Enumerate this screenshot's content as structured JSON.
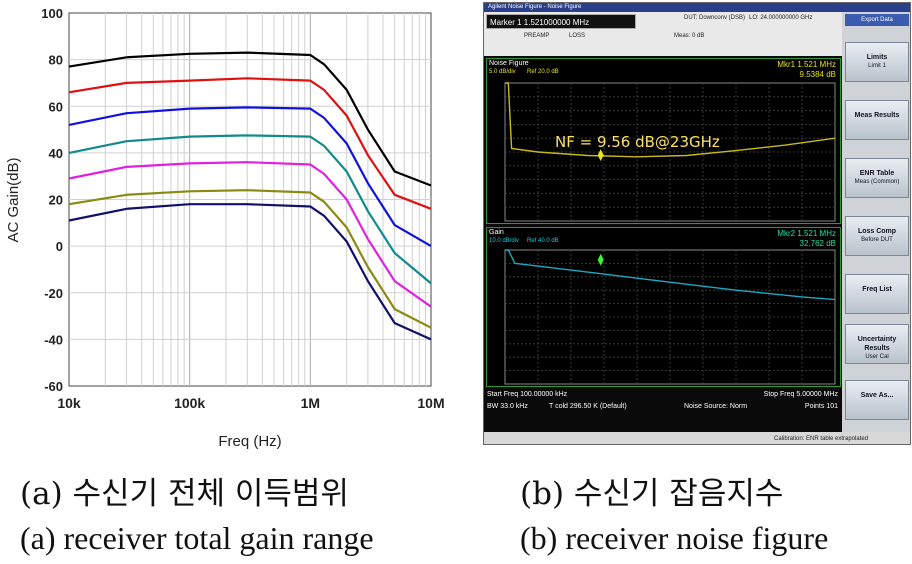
{
  "chart_data": [
    {
      "type": "line",
      "ylabel": "AC Gain(dB)",
      "xlabel": "Freq (Hz)",
      "xscale": "log",
      "xlim": [
        10000,
        10000000
      ],
      "ylim": [
        -60,
        100
      ],
      "xticks": [
        "10k",
        "100k",
        "1M",
        "10M"
      ],
      "yticks": [
        "100",
        "80",
        "60",
        "40",
        "20",
        "0",
        "-20",
        "-40",
        "-60"
      ],
      "grid": true,
      "x": [
        10000,
        30000,
        100000,
        300000,
        1000000,
        1300000,
        2000000,
        3000000,
        5000000,
        10000000
      ],
      "series": [
        {
          "color": "#000000",
          "values": [
            77,
            81,
            82.5,
            83,
            82,
            78,
            67,
            50,
            32,
            26
          ]
        },
        {
          "color": "#e01010",
          "values": [
            66,
            70,
            71,
            72,
            71,
            67,
            56,
            39,
            22,
            16
          ]
        },
        {
          "color": "#1010e0",
          "values": [
            52,
            57,
            59,
            59.5,
            59,
            55,
            44,
            27,
            9,
            0
          ]
        },
        {
          "color": "#108a8a",
          "values": [
            40,
            45,
            47,
            47.5,
            47,
            43,
            32,
            15,
            -3,
            -16
          ]
        },
        {
          "color": "#e020e0",
          "values": [
            29,
            34,
            35.5,
            36,
            35,
            31,
            20,
            3,
            -15,
            -26
          ]
        },
        {
          "color": "#8a8a10",
          "values": [
            18,
            22,
            23.5,
            24,
            23,
            19,
            8,
            -9,
            -27,
            -35
          ]
        },
        {
          "color": "#10106a",
          "values": [
            11,
            16,
            18,
            18,
            17,
            13,
            2,
            -15,
            -33,
            -40
          ]
        }
      ]
    },
    {
      "type": "line",
      "title": "Noise Figure",
      "x_start": 100000,
      "x_stop": 5000000,
      "points": 101,
      "annotation": "NF = 9.56 dB@23GHz",
      "marker_freq_mhz": 1.521,
      "marker_value": 9.5384,
      "x": [
        0,
        0.01,
        0.02,
        0.1,
        0.25,
        0.4,
        0.55,
        0.7,
        0.85,
        1.0
      ],
      "values": [
        20,
        20,
        10.5,
        10,
        9.5,
        9.3,
        9.5,
        10.2,
        11,
        12
      ],
      "ylim": [
        0,
        20
      ]
    },
    {
      "type": "line",
      "title": "Gain",
      "marker_freq_mhz": 1.521,
      "marker_value": 32.762,
      "x": [
        0,
        0.01,
        0.03,
        0.1,
        0.3,
        0.5,
        0.7,
        0.9,
        1.0
      ],
      "values": [
        40,
        40,
        30,
        28,
        22,
        16,
        10,
        5,
        3
      ],
      "ylim": [
        -60,
        40
      ]
    }
  ],
  "captions": {
    "a_korean": "(a) 수신기 전체 이득범위",
    "a_english": "(a) receiver total gain range",
    "b_korean": "(b) 수신기 잡음지수",
    "b_english": "(b) receiver noise figure"
  },
  "analyzer": {
    "window_title": "Agilent Noise Figure - Noise Figure",
    "marker": "Marker 1 1.521000000 MHz",
    "dut": "DUT: Downconv (DSB)",
    "lo": "LO: 24.000000000 GHz",
    "preamp": "PREAMP",
    "loss": "LOSS",
    "meas": "Meas: 0 dB",
    "nf_pane": {
      "title": "Noise Figure",
      "scale": "5.0 dB/div",
      "ref": "Ref 20.0 dB",
      "mkr_freq": "Mkr1  1.521 MHz",
      "mkr_val": "9.5384 dB",
      "annotation": "NF = 9.56 dB@23GHz"
    },
    "gain_pane": {
      "title": "Gain",
      "scale": "10.0 dB/div",
      "ref": "Ref 40.0 dB",
      "mkr_freq": "Mkr2  1.521 MHz",
      "mkr_val": "32.762 dB"
    },
    "start_freq": "Start Freq 100.00000 kHz",
    "stop_freq": "Stop Freq 5.00000 MHz",
    "bw": "BW 33.0 kHz",
    "tcold": "T cold 296.50 K (Default)",
    "noise_source": "Noise Source: Norm",
    "points": "Points 101",
    "status": "Calibration: ENR table extrapolated",
    "softkeys": {
      "top": "Export Data",
      "limits": "Limits",
      "limits_sub": "Limit 1",
      "meas_results": "Meas Results",
      "enr_table": "ENR Table",
      "enr_sub": "Meas (Common)",
      "loss_comp": "Loss Comp",
      "loss_sub": "Before DUT",
      "freq_list": "Freq List",
      "uncertainty": "Uncertainty Results",
      "uncertainty_sub": "User Cal",
      "save_as": "Save As..."
    },
    "colors": {
      "trace_nf": "#c8b820",
      "trace_gain": "#20a8c0",
      "marker_text": "#e8e020",
      "grid": "#555555",
      "pane_border": "#2c9a2c"
    }
  }
}
